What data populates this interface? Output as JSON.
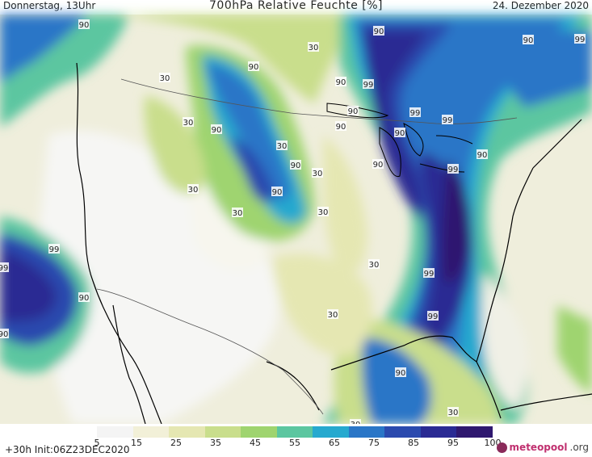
{
  "header": {
    "left": "Donnerstag, 13Uhr",
    "center": "700hPa Relative Feuchte [%]",
    "right": "24. Dezember 2020"
  },
  "legend": {
    "ticks": [
      "5",
      "15",
      "25",
      "35",
      "45",
      "55",
      "65",
      "75",
      "85",
      "95",
      "100"
    ],
    "colors": [
      "#f4f4f4",
      "#f2f0d8",
      "#e5e7b2",
      "#c9de8c",
      "#9fd46f",
      "#5cc6a0",
      "#26a9cf",
      "#2a76c7",
      "#2b4aae",
      "#2a2a93",
      "#2f186f"
    ],
    "init_text": "+30h  Init:06Z23DEC2020",
    "logo_main": "meteopool",
    "logo_tld": ".org"
  },
  "contour_labels": [
    {
      "text": "90"
    },
    {
      "text": "30"
    },
    {
      "text": "90"
    },
    {
      "text": "30"
    },
    {
      "text": "30"
    },
    {
      "text": "90"
    },
    {
      "text": "30"
    },
    {
      "text": "90"
    },
    {
      "text": "30"
    },
    {
      "text": "30"
    },
    {
      "text": "30"
    },
    {
      "text": "90"
    },
    {
      "text": "99"
    },
    {
      "text": "30"
    },
    {
      "text": "30"
    },
    {
      "text": "90"
    },
    {
      "text": "99"
    },
    {
      "text": "90"
    },
    {
      "text": "90"
    },
    {
      "text": "99"
    },
    {
      "text": "90"
    },
    {
      "text": "90"
    },
    {
      "text": "99"
    },
    {
      "text": "99"
    },
    {
      "text": "90"
    },
    {
      "text": "90"
    },
    {
      "text": "99"
    },
    {
      "text": "90"
    },
    {
      "text": "30"
    },
    {
      "text": "90"
    },
    {
      "text": "99"
    },
    {
      "text": "99"
    },
    {
      "text": "90"
    },
    {
      "text": "99"
    },
    {
      "text": "30"
    },
    {
      "text": "90"
    },
    {
      "text": "30"
    }
  ]
}
